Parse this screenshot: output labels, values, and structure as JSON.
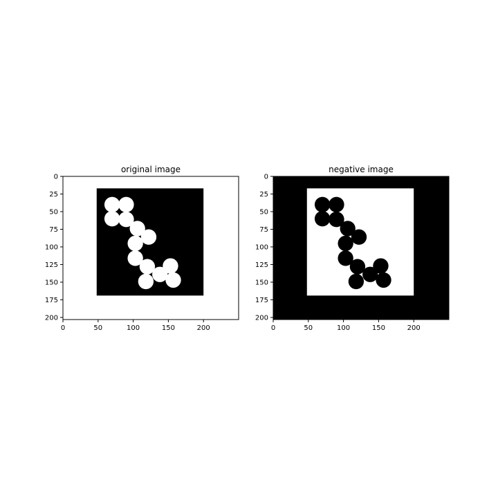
{
  "chart_data": [
    {
      "type": "image",
      "title": "original image",
      "xlim": [
        0,
        250
      ],
      "ylim": [
        203,
        0
      ],
      "xticks": [
        0,
        50,
        100,
        150,
        200
      ],
      "yticks": [
        0,
        25,
        50,
        75,
        100,
        125,
        150,
        175,
        200
      ],
      "background": "#ffffff",
      "shape_color": "#000000",
      "blob_color": "#ffffff",
      "rect": {
        "x0": 48,
        "x1": 200,
        "y0": 17,
        "y1": 169
      },
      "blobs": [
        {
          "x": 70,
          "y": 40,
          "r": 11
        },
        {
          "x": 90,
          "y": 40,
          "r": 11
        },
        {
          "x": 70,
          "y": 60,
          "r": 11
        },
        {
          "x": 90,
          "y": 61,
          "r": 11
        },
        {
          "x": 106,
          "y": 74,
          "r": 11
        },
        {
          "x": 122,
          "y": 86,
          "r": 11
        },
        {
          "x": 103,
          "y": 95,
          "r": 11
        },
        {
          "x": 103,
          "y": 116,
          "r": 11
        },
        {
          "x": 120,
          "y": 128,
          "r": 11
        },
        {
          "x": 153,
          "y": 127,
          "r": 11
        },
        {
          "x": 138,
          "y": 139,
          "r": 11
        },
        {
          "x": 118,
          "y": 149,
          "r": 11
        },
        {
          "x": 157,
          "y": 147,
          "r": 11
        }
      ]
    },
    {
      "type": "image",
      "title": "negative image",
      "xlim": [
        0,
        250
      ],
      "ylim": [
        203,
        0
      ],
      "xticks": [
        0,
        50,
        100,
        150,
        200
      ],
      "yticks": [
        0,
        25,
        50,
        75,
        100,
        125,
        150,
        175,
        200
      ],
      "background": "#000000",
      "shape_color": "#ffffff",
      "blob_color": "#000000",
      "rect": {
        "x0": 48,
        "x1": 200,
        "y0": 17,
        "y1": 169
      },
      "blobs": [
        {
          "x": 70,
          "y": 40,
          "r": 11
        },
        {
          "x": 90,
          "y": 40,
          "r": 11
        },
        {
          "x": 70,
          "y": 60,
          "r": 11
        },
        {
          "x": 90,
          "y": 61,
          "r": 11
        },
        {
          "x": 106,
          "y": 74,
          "r": 11
        },
        {
          "x": 122,
          "y": 86,
          "r": 11
        },
        {
          "x": 103,
          "y": 95,
          "r": 11
        },
        {
          "x": 103,
          "y": 116,
          "r": 11
        },
        {
          "x": 120,
          "y": 128,
          "r": 11
        },
        {
          "x": 153,
          "y": 127,
          "r": 11
        },
        {
          "x": 138,
          "y": 139,
          "r": 11
        },
        {
          "x": 118,
          "y": 149,
          "r": 11
        },
        {
          "x": 157,
          "y": 147,
          "r": 11
        }
      ]
    }
  ]
}
